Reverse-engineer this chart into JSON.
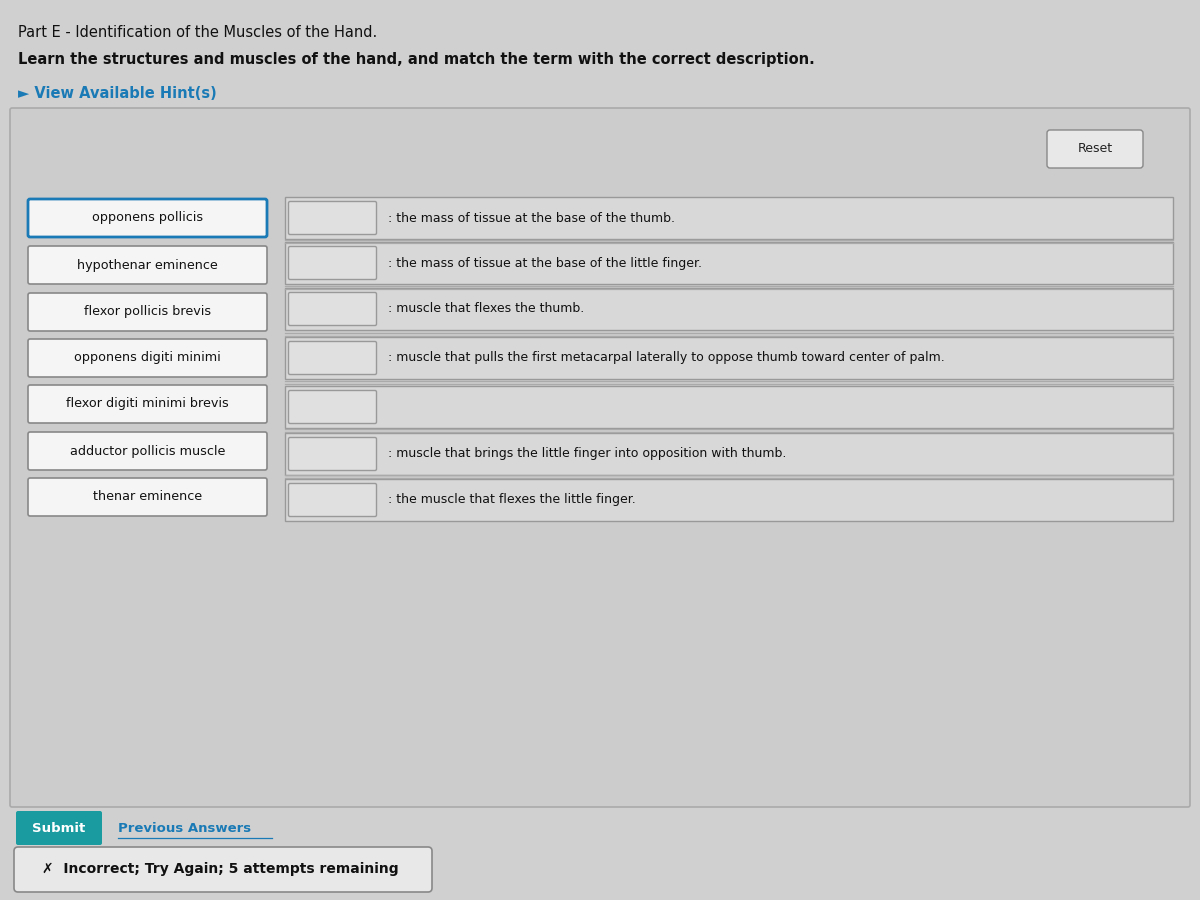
{
  "title_part": "Part E - Identification of the Muscles of the Hand.",
  "subtitle": "Learn the structures and muscles of the hand, and match the term with the correct description.",
  "hint_text": "► View Available Hint(s)",
  "reset_text": "Reset",
  "bg_color": "#d0d0d0",
  "left_terms": [
    "opponens pollicis",
    "hypothenar eminence",
    "flexor pollicis brevis",
    "opponens digiti minimi",
    "flexor digiti minimi brevis",
    "adductor pollicis muscle",
    "thenar eminence"
  ],
  "desc_rows": [
    [
      6.82,
      ": the mass of tissue at the base of the thumb."
    ],
    [
      6.37,
      ": the mass of tissue at the base of the little finger."
    ],
    [
      5.91,
      ": muscle that flexes the thumb."
    ],
    [
      5.42,
      ": muscle that pulls the first metacarpal laterally to oppose thumb toward center of palm."
    ],
    [
      4.93,
      null
    ],
    [
      4.46,
      ": muscle that brings the little finger into opposition with thumb."
    ],
    [
      4.0,
      ": the muscle that flexes the little finger."
    ]
  ],
  "submit_text": "Submit",
  "prev_answers_text": "Previous Answers",
  "incorrect_text": "✗  Incorrect; Try Again; 5 attempts remaining",
  "hint_color": "#1a7ab5",
  "submit_bg": "#1a9ba0",
  "submit_text_color": "#ffffff",
  "term_box_border_active": "#1a7ab5",
  "term_box_border": "#888888",
  "term_box_fill": "#f5f5f5",
  "small_box_fill": "#e0e0e0",
  "desc_row_fill": "#d8d8d8",
  "desc_row_border": "#999999"
}
